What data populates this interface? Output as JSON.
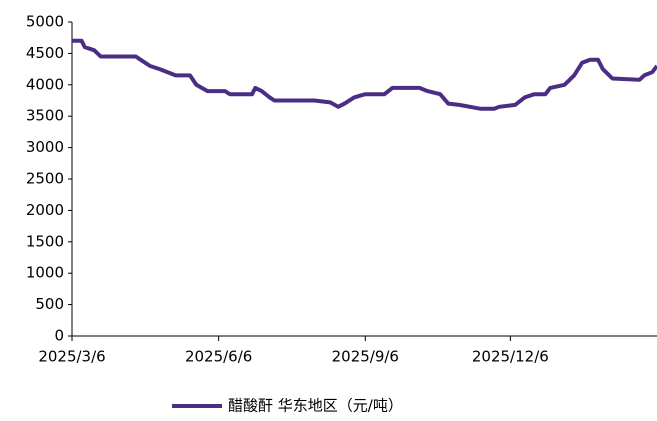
{
  "chart_data": {
    "type": "line",
    "x": [
      "2025/3/6",
      "2025/3/12",
      "2025/3/14",
      "2025/3/20",
      "2025/3/24",
      "2025/4/15",
      "2025/4/18",
      "2025/4/24",
      "2025/4/30",
      "2025/5/10",
      "2025/5/19",
      "2025/5/23",
      "2025/5/30",
      "2025/6/10",
      "2025/6/13",
      "2025/6/27",
      "2025/6/29",
      "2025/7/3",
      "2025/7/8",
      "2025/7/11",
      "2025/8/5",
      "2025/8/15",
      "2025/8/20",
      "2025/8/24",
      "2025/8/30",
      "2025/9/6",
      "2025/9/18",
      "2025/9/23",
      "2025/10/10",
      "2025/10/15",
      "2025/10/23",
      "2025/10/28",
      "2025/11/4",
      "2025/11/17",
      "2025/11/26",
      "2025/11/29",
      "2025/12/9",
      "2025/12/15",
      "2025/12/21",
      "2025/12/28",
      "2025/12/31",
      "2026/1/9",
      "2026/1/15",
      "2026/1/20",
      "2026/1/25",
      "2026/1/30",
      "2026/2/2",
      "2026/2/8",
      "2026/2/25",
      "2026/2/28",
      "2026/3/5",
      "2026/3/8"
    ],
    "series": [
      {
        "name": "醋酸酐 华东地区（元/吨）",
        "color": "#4b2d83",
        "values": [
          4700,
          4700,
          4600,
          4550,
          4450,
          4450,
          4400,
          4300,
          4250,
          4150,
          4150,
          4000,
          3900,
          3900,
          3850,
          3850,
          3950,
          3900,
          3800,
          3750,
          3750,
          3720,
          3650,
          3700,
          3800,
          3850,
          3850,
          3950,
          3950,
          3900,
          3850,
          3700,
          3680,
          3620,
          3620,
          3650,
          3680,
          3800,
          3850,
          3850,
          3950,
          4000,
          4150,
          4350,
          4400,
          4400,
          4250,
          4100,
          4080,
          4150,
          4200,
          4300
        ]
      }
    ],
    "xlim": [
      "2025/3/6",
      "2026/3/8"
    ],
    "xticks": [
      "2025/3/6",
      "2025/6/6",
      "2025/9/6",
      "2025/12/6"
    ],
    "ylim": [
      0,
      5000
    ],
    "yticks": [
      0,
      500,
      1000,
      1500,
      2000,
      2500,
      3000,
      3500,
      4000,
      4500,
      5000
    ],
    "legend": "bottom"
  }
}
